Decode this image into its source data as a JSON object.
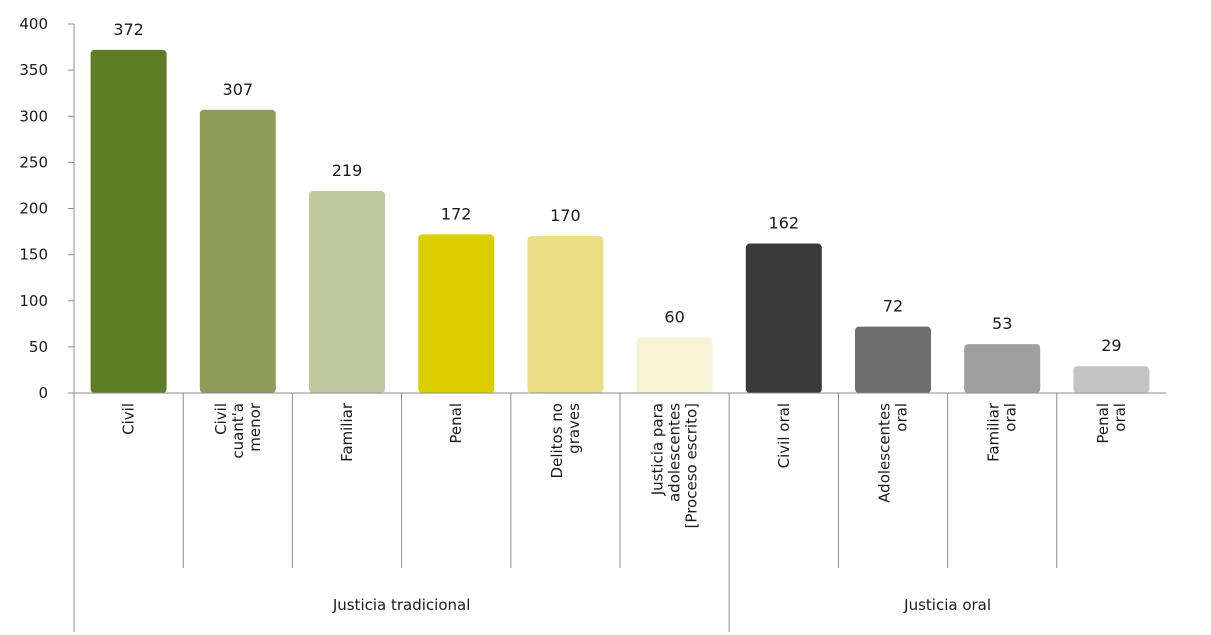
{
  "chart_data": {
    "type": "bar",
    "title": "",
    "xlabel": "",
    "ylabel": "",
    "ylim": [
      0,
      400
    ],
    "yticks": [
      0,
      50,
      100,
      150,
      200,
      250,
      300,
      350,
      400
    ],
    "grid": false,
    "legend": "none",
    "categories": [
      "Civil",
      "Civil cuant'a menor",
      "Familiar",
      "Penal",
      "Delitos no graves",
      "Justicia para adolescentes [Proceso escrito]",
      "Civil oral",
      "Adolescentes oral",
      "Familiar oral",
      "Penal oral"
    ],
    "category_lines": [
      [
        "Civil"
      ],
      [
        "Civil",
        "cuant'a",
        "menor"
      ],
      [
        "Familiar"
      ],
      [
        "Penal"
      ],
      [
        "Delitos no",
        "graves"
      ],
      [
        "Justicia para",
        "adolescentes",
        "[Proceso escrito]"
      ],
      [
        "Civil oral"
      ],
      [
        "Adolescentes",
        "oral"
      ],
      [
        "Familiar",
        "oral"
      ],
      [
        "Penal",
        "oral"
      ]
    ],
    "values": [
      372,
      307,
      219,
      172,
      170,
      60,
      162,
      72,
      53,
      29
    ],
    "colors": [
      "#5e7d22",
      "#8e9e58",
      "#bfc99e",
      "#ddce00",
      "#ebdf86",
      "#f7f3d6",
      "#3a3a3a",
      "#6e6e6e",
      "#9f9f9f",
      "#c4c4c4"
    ],
    "groups": [
      {
        "label": "Justicia tradicional",
        "start": 0,
        "end": 5
      },
      {
        "label": "Justicia oral",
        "start": 6,
        "end": 9
      }
    ],
    "axis_color": "#8c8c8c"
  }
}
